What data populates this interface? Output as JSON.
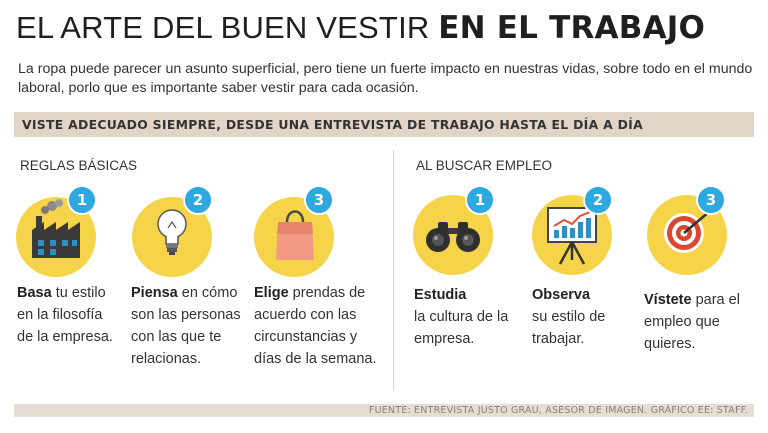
{
  "title": {
    "light": "EL ARTE DEL BUEN VESTIR ",
    "bold": "EN EL TRABAJO"
  },
  "intro": "La ropa puede parecer un asunto superficial, pero tiene un fuerte impacto en nuestras vidas, sobre todo en el mundo laboral, porlo que es importante saber vestir para cada ocasión.",
  "banner": "VISTE ADECUADO SIEMPRE, DESDE UNA ENTREVISTA DE TRABAJO HASTA EL DÍA A DÍA",
  "sections": {
    "basic": {
      "title": "REGLAS BÁSICAS"
    },
    "job": {
      "title": "AL BUSCAR EMPLEO"
    }
  },
  "items": [
    {
      "num": "1",
      "icon": "factory-icon",
      "strong": "Basa",
      "text": " tu estilo en la filosofía de la empresa."
    },
    {
      "num": "2",
      "icon": "lightbulb-icon",
      "strong": "Piensa",
      "text": " en cómo son las personas con las que te relacionas."
    },
    {
      "num": "3",
      "icon": "shopping-bag-icon",
      "strong": "Elige",
      "text": " prendas de acuerdo con las circunstancias y días de la semana."
    },
    {
      "num": "1",
      "icon": "binoculars-icon",
      "strong": "Estudia",
      "text": "la cultura de la empresa."
    },
    {
      "num": "2",
      "icon": "chart-easel-icon",
      "strong": "Observa",
      "text": "su estilo de trabajar."
    },
    {
      "num": "3",
      "icon": "target-icon",
      "strong": "Vístete",
      "text": " para el empleo que quieres."
    }
  ],
  "footer": "FUENTE: ENTREVISTA JUSTO GRAU, ASESOR DE IMAGEN.  GRÁFICO EE: STAFF.",
  "colors": {
    "circle": "#f6d44a",
    "badge": "#2ea8df",
    "banner": "#e2d5c8"
  }
}
